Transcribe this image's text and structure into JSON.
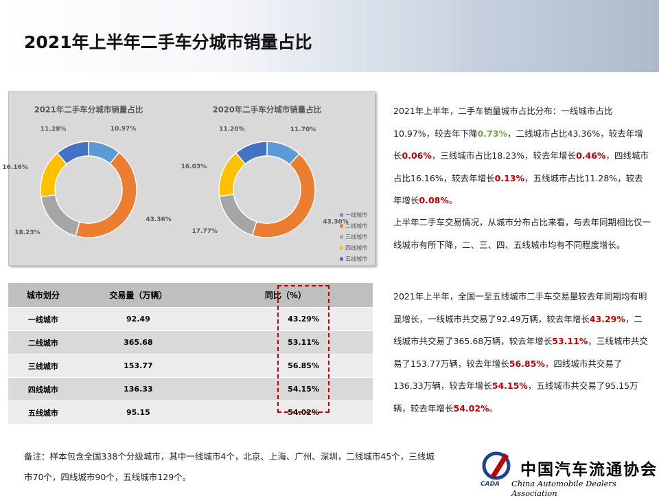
{
  "header": {
    "title": "2021年上半年二手车分城市销量占比"
  },
  "chart_data": [
    {
      "type": "pie",
      "title": "2021年二手车分城市销量占比",
      "categories": [
        "一线城市",
        "二线城市",
        "三线城市",
        "四线城市",
        "五线城市"
      ],
      "values": [
        10.97,
        43.36,
        18.23,
        16.16,
        11.28
      ],
      "value_labels": [
        "10.97%",
        "43.36%",
        "18.23%",
        "16.16%",
        "11.28%"
      ],
      "colors": [
        "#5b9bd5",
        "#ed7d31",
        "#a5a5a5",
        "#ffc000",
        "#4472c4"
      ]
    },
    {
      "type": "pie",
      "title": "2020年二手车分城市销量占比",
      "categories": [
        "一线城市",
        "二线城市",
        "三线城市",
        "四线城市",
        "五线城市"
      ],
      "values": [
        11.7,
        43.3,
        17.77,
        16.03,
        11.2
      ],
      "value_labels": [
        "11.70%",
        "43.30%",
        "17.77%",
        "16.03%",
        "11.20%"
      ],
      "colors": [
        "#5b9bd5",
        "#ed7d31",
        "#a5a5a5",
        "#ffc000",
        "#4472c4"
      ],
      "legend": "right"
    }
  ],
  "table": {
    "header": [
      "城市划分",
      "交易量（万辆）",
      "同比（%）"
    ],
    "rows": [
      [
        "一线城市",
        "92.49",
        "43.29%"
      ],
      [
        "二线城市",
        "365.68",
        "53.11%"
      ],
      [
        "三线城市",
        "153.77",
        "56.85%"
      ],
      [
        "四线城市",
        "136.33",
        "54.15%"
      ],
      [
        "五线城市",
        "95.15",
        "54.02%"
      ]
    ]
  },
  "paragraphs": [
    [
      "2021年上半年，二手车销量城市占比分布：一线城市占比10.97%，较去年下降",
      {
        "text": "0.73%",
        "color": "#70ad47"
      },
      "，二线城市占比43.36%，较去年增长",
      {
        "text": "0.06%",
        "color": "#c00000"
      },
      "，三线城市占比18.23%，较去年增长",
      {
        "text": "0.46%",
        "color": "#c00000"
      },
      "，四线城市占比16.16%，较去年增长",
      {
        "text": "0.13%",
        "color": "#c00000"
      },
      "，五线城市占比11.28%，较去年增长",
      {
        "text": "0.08%",
        "color": "#c00000"
      },
      "。"
    ],
    [
      "上半年二手车交易情况，从城市分布占比来看，与去年同期相比仅一线城市有所下降，二、三、四、五线城市均有不同程度增长。"
    ],
    [
      "2021年上半年，全国一至五线城市二手车交易量较去年同期均有明显增长，一线城市共交易了92.49万辆，较去年增长",
      {
        "text": "43.29%",
        "color": "#c00000"
      },
      "，二线城市共交易了365.68万辆，较去年增长",
      {
        "text": "53.11%",
        "color": "#c00000"
      },
      "，三线城市共交易了153.77万辆，较去年增长",
      {
        "text": "56.85%",
        "color": "#c00000"
      },
      "，四线城市共交易了136.33万辆，较去年增长",
      {
        "text": "54.15%",
        "color": "#c00000"
      },
      "，五线城市共交易了95.15万辆，较去年增长",
      {
        "text": "54.02%",
        "color": "#c00000"
      },
      "。"
    ]
  ],
  "note": "备注：样本包含全国338个分级城市，其中一线城市4个，北京、上海、广州、深圳，二线城市45个，三线城市70个，四线城市90个，五线城市129个。",
  "logo": {
    "name": "中国汽车流通协会",
    "english": "China Automobile Dealers Association",
    "mark": "CADA"
  }
}
